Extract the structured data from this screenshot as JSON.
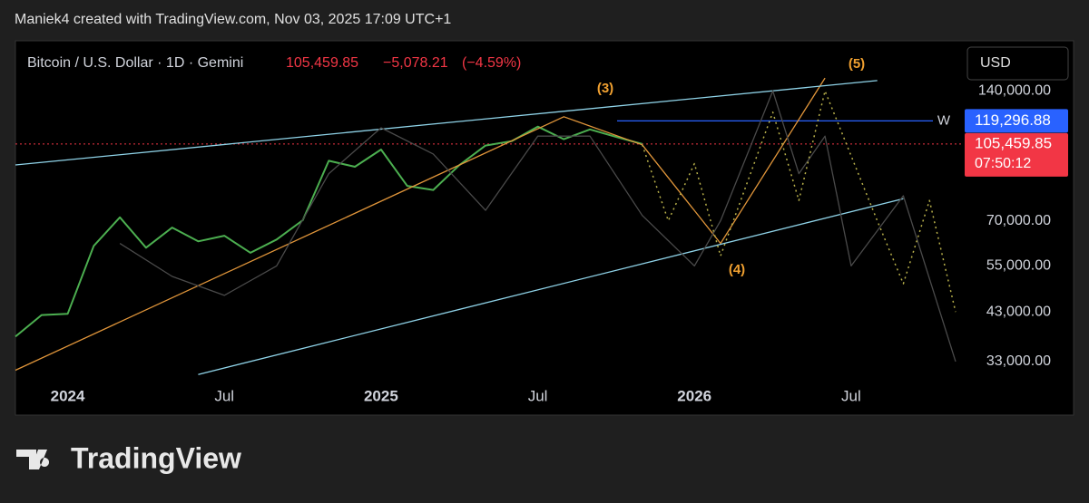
{
  "header": "Maniek4 created with TradingView.com, Nov 03, 2025 17:09 UTC+1",
  "chart_data": {
    "type": "line",
    "title": "Bitcoin / U.S. Dollar · 1D · Gemini",
    "last_price": {
      "value": 105459.85,
      "label": "105,459.85",
      "color": "#f23645"
    },
    "change": {
      "value": -5078.21,
      "label": "−5,078.21"
    },
    "change_pct": {
      "value": -4.59,
      "label": "(−4.59%)"
    },
    "countdown": "07:50:12",
    "currency": "USD",
    "hline": {
      "value": 119296.88,
      "label": "119,296.88",
      "marker": "W",
      "color": "#2962ff"
    },
    "log_scale": true,
    "xlim": [
      "2023-11",
      "2026-11"
    ],
    "xticks": [
      {
        "value": "2024-01",
        "label": "2024"
      },
      {
        "value": "2024-07",
        "label": "Jul"
      },
      {
        "value": "2025-01",
        "label": "2025"
      },
      {
        "value": "2025-07",
        "label": "Jul"
      },
      {
        "value": "2026-01",
        "label": "2026"
      },
      {
        "value": "2026-07",
        "label": "Jul"
      }
    ],
    "ylim": [
      29800,
      183000
    ],
    "yticks": [
      {
        "value": 33000,
        "label": "33,000.00"
      },
      {
        "value": 43000,
        "label": "43,000.00"
      },
      {
        "value": 55000,
        "label": "55,000.00"
      },
      {
        "value": 70000,
        "label": "70,000.00"
      },
      {
        "value": 140000,
        "label": "140,000.00"
      }
    ],
    "annotations": [
      "(3)",
      "(4)",
      "(5)"
    ],
    "series": [
      {
        "color": "#4caf50",
        "style": "solid",
        "x": [
          "2023-11",
          "2023-12",
          "2024-01",
          "2024-02",
          "2024-03",
          "2024-04",
          "2024-05",
          "2024-06",
          "2024-07",
          "2024-08",
          "2024-09",
          "2024-10",
          "2024-11",
          "2024-12",
          "2025-01",
          "2025-02",
          "2025-03",
          "2025-04",
          "2025-05",
          "2025-06",
          "2025-07",
          "2025-08",
          "2025-09",
          "2025-10",
          "2025-11"
        ],
        "values": [
          37700,
          42300,
          42600,
          61200,
          71300,
          60600,
          67500,
          62700,
          64600,
          59000,
          63300,
          70200,
          96400,
          93400,
          102400,
          84300,
          82500,
          94200,
          104600,
          107100,
          115700,
          108200,
          114000,
          109500,
          105459.85
        ]
      },
      {
        "color": "#e0953a",
        "style": "solid",
        "x": [
          "2023-11",
          "2025-08",
          "2025-11",
          "2026-02",
          "2026-06"
        ],
        "values": [
          31500,
          122000,
          105000,
          62000,
          150000
        ]
      },
      {
        "color": "#8fd3e8",
        "style": "solid",
        "x": [
          "2023-11",
          "2026-08"
        ],
        "values": [
          94300,
          148000
        ]
      },
      {
        "color": "#8fd3e8",
        "style": "solid",
        "x": [
          "2024-06",
          "2026-09"
        ],
        "values": [
          30800,
          78700
        ]
      },
      {
        "color": "#4a4a4a",
        "style": "solid",
        "x": [
          "2024-03",
          "2024-05",
          "2024-07",
          "2024-09",
          "2024-11",
          "2025-01",
          "2025-03",
          "2025-05",
          "2025-07",
          "2025-09",
          "2025-11",
          "2026-01",
          "2026-02",
          "2026-04",
          "2026-05",
          "2026-06",
          "2026-07",
          "2026-09",
          "2026-11"
        ],
        "values": [
          62000,
          52000,
          47000,
          55000,
          90000,
          115000,
          100000,
          74000,
          110000,
          110000,
          72000,
          55000,
          70000,
          140000,
          90000,
          110000,
          55000,
          80000,
          33000
        ]
      },
      {
        "color": "#b8b04a",
        "style": "dotted",
        "x": [
          "2025-11",
          "2025-12",
          "2026-01",
          "2026-02",
          "2026-04",
          "2026-05",
          "2026-06",
          "2026-08",
          "2026-09",
          "2026-10",
          "2026-11"
        ],
        "values": [
          105000,
          70000,
          95000,
          58000,
          125000,
          78000,
          140000,
          70000,
          50000,
          78000,
          43000
        ]
      }
    ]
  }
}
